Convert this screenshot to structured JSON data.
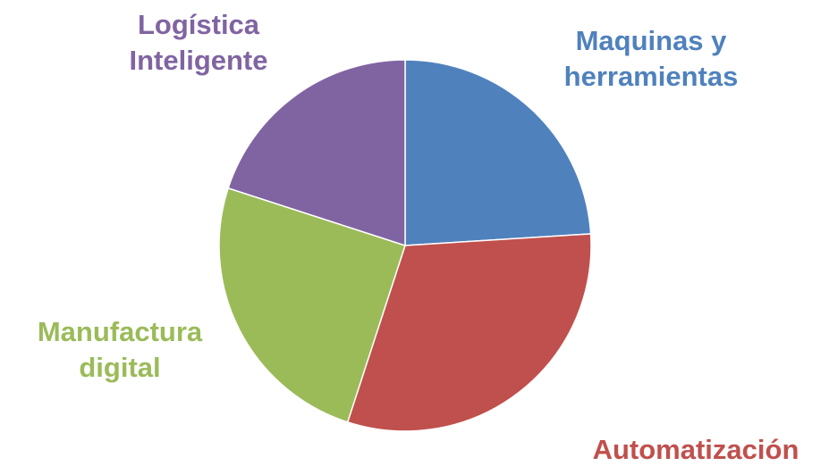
{
  "chart_data": {
    "type": "pie",
    "categories": [
      "Maquinas y herramientas",
      "Automatización",
      "Manufactura digital",
      "Logística Inteligente"
    ],
    "values": [
      24,
      31,
      25,
      20
    ],
    "colors": [
      "#4f81bd",
      "#c0504d",
      "#9bbb59",
      "#8064a2"
    ]
  }
}
